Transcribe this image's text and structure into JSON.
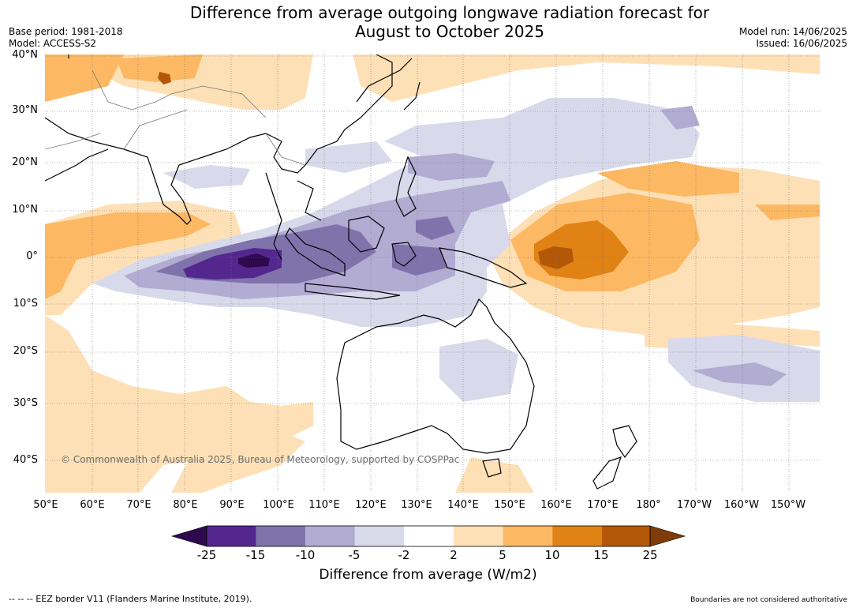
{
  "header": {
    "title_line1": "Difference from average outgoing longwave radiation forecast for",
    "title_line2": "August to October 2025",
    "base_period": "Base period: 1981-2018",
    "model": "Model: ACCESS-S2",
    "model_run": "Model run: 14/06/2025",
    "issued": "Issued: 16/06/2025"
  },
  "map": {
    "copyright": "© Commonwealth of Australia 2025, Bureau of Meteorology, supported by COSPPac",
    "lat_labels": [
      "40°N",
      "30°N",
      "20°N",
      "10°N",
      "0°",
      "10°S",
      "20°S",
      "30°S",
      "40°S"
    ],
    "lon_labels": [
      "50°E",
      "60°E",
      "70°E",
      "80°E",
      "90°E",
      "100°E",
      "110°E",
      "120°E",
      "130°E",
      "140°E",
      "150°E",
      "160°E",
      "170°E",
      "180°",
      "170°W",
      "160°W",
      "150°W"
    ]
  },
  "legend": {
    "title": "Difference from average (W/m2)",
    "ticks": [
      "-25",
      "-15",
      "-10",
      "-5",
      "-2",
      "2",
      "5",
      "10",
      "15",
      "25"
    ],
    "colors": [
      "#2d0a4e",
      "#54278f",
      "#8073ac",
      "#b2abd2",
      "#d8daeb",
      "#ffffff",
      "#fee0b6",
      "#fdb863",
      "#e08214",
      "#b35806",
      "#7f3b08"
    ]
  },
  "footer": {
    "eez_note": "--  --  -- EEZ border V11 (Flanders Marine Institute, 2019).",
    "boundaries_note": "Boundaries are not considered authoritative"
  }
}
